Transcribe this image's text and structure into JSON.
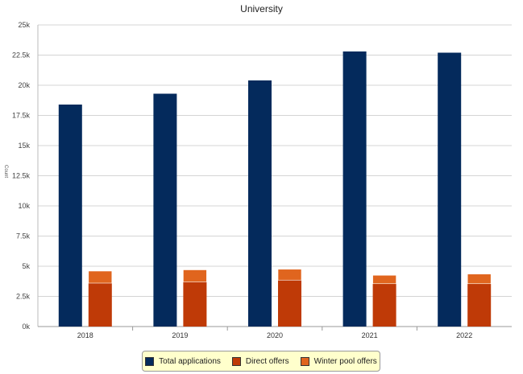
{
  "chart_data": {
    "type": "bar",
    "title": "University",
    "ylabel": "Count",
    "categories": [
      "2018",
      "2019",
      "2020",
      "2021",
      "2022"
    ],
    "series": [
      {
        "name": "Total applications",
        "values": [
          18400,
          19300,
          20400,
          22800,
          22700
        ],
        "color": "#042a5c",
        "group": "total"
      },
      {
        "name": "Direct offers",
        "values": [
          3600,
          3700,
          3850,
          3550,
          3550
        ],
        "color": "#bf3a07",
        "group": "offers"
      },
      {
        "name": "Winter pool offers",
        "values": [
          1000,
          1000,
          900,
          700,
          800
        ],
        "color": "#e0651e",
        "group": "offers"
      }
    ],
    "ylim": [
      0,
      25000
    ],
    "yticks": [
      "0k",
      "2.5k",
      "5k",
      "7.5k",
      "10k",
      "12.5k",
      "15k",
      "17.5k",
      "20k",
      "22.5k",
      "25k"
    ],
    "grid": true,
    "legend_position": "bottom"
  }
}
